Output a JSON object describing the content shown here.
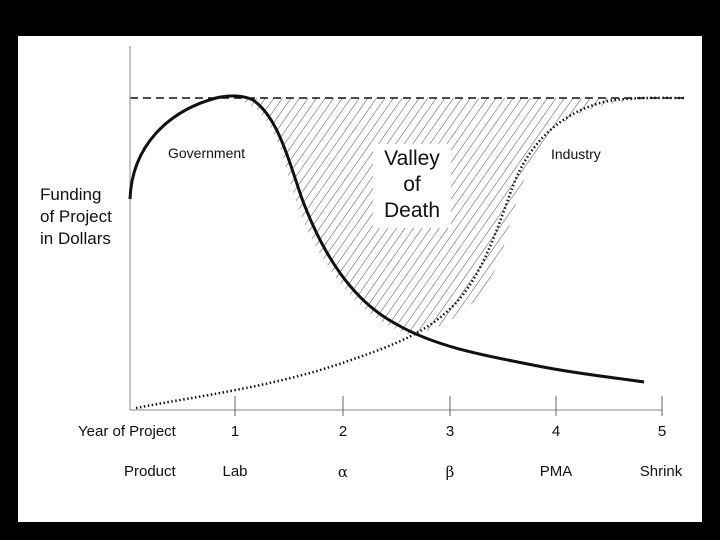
{
  "diagram": {
    "y_axis_label": [
      "Funding",
      "of Project",
      "in Dollars"
    ],
    "curve_labels": {
      "government": "Government",
      "industry": "Industry"
    },
    "valley_label": [
      "Valley",
      "of",
      "Death"
    ],
    "x_axis": {
      "row1_title": "Year of Project",
      "row1_ticks": [
        "1",
        "2",
        "3",
        "4",
        "5"
      ],
      "row2_title": "Product",
      "row2_ticks": [
        "Lab",
        "α",
        "β",
        "PMA",
        "Shrink"
      ]
    },
    "colors": {
      "background": "#000000",
      "panel": "#ffffff",
      "ink": "#111111"
    }
  }
}
